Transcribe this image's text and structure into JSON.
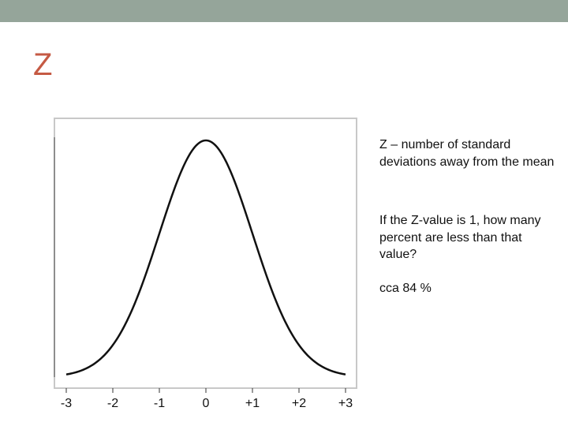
{
  "theme": {
    "header_bar_color": "#95a59a",
    "title_color": "#c55a44",
    "curve_color": "#111111",
    "frame_color": "#c8c8c8"
  },
  "slide": {
    "title": "Z",
    "paragraphs": [
      "Z – number of standard deviations away from the mean",
      "If the Z-value is 1, how many percent are less than that value?",
      "cca 84 %"
    ]
  },
  "chart_data": {
    "type": "line",
    "title": "",
    "xlabel": "",
    "ylabel": "",
    "distribution": "standard normal",
    "x_tick_labels": [
      "-3",
      "-2",
      "-1",
      "0",
      "+1",
      "+2",
      "+3"
    ],
    "x_tick_values": [
      -3,
      -2,
      -1,
      0,
      1,
      2,
      3
    ],
    "xlim": [
      -3,
      3
    ],
    "grid": false,
    "legend": "none",
    "series": [
      {
        "x": [
          -3.0,
          -2.5,
          -2.0,
          -1.5,
          -1.0,
          -0.5,
          0.0,
          0.5,
          1.0,
          1.5,
          2.0,
          2.5,
          3.0
        ],
        "y": [
          0.0044,
          0.0175,
          0.054,
          0.1295,
          0.242,
          0.3521,
          0.3989,
          0.3521,
          0.242,
          0.1295,
          0.054,
          0.0175,
          0.0044
        ]
      }
    ]
  }
}
